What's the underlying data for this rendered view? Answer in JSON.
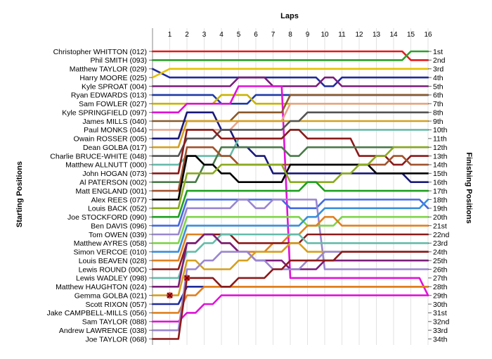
{
  "chart_data": {
    "type": "line",
    "title": "Laps",
    "xlabel": "Laps",
    "ylabel_left": "Starting Positions",
    "ylabel_right": "Finishing Positions",
    "x": [
      1,
      2,
      3,
      4,
      5,
      6,
      7,
      8,
      9,
      10,
      11,
      12,
      13,
      14,
      15,
      16
    ],
    "x_tick_labels": [
      "1",
      "2",
      "3",
      "4",
      "5",
      "6",
      "7",
      "8",
      "9",
      "10",
      "11",
      "12",
      "13",
      "14",
      "15",
      "16"
    ],
    "y_range": [
      1,
      34
    ],
    "grid": "vertical",
    "drivers": [
      "Christopher WHITTON (012)",
      "Phil SMITH (093)",
      "Matthew TAYLOR (029)",
      "Harry MOORE (025)",
      "Kyle SPROAT (004)",
      "Ryan EDWARDS (013)",
      "Sam FOWLER (027)",
      "Kyle SPRINGFIELD (097)",
      "James MILLS (040)",
      "Paul MONKS (044)",
      "Owain ROSSER (005)",
      "Dean GOLBA (017)",
      "Charlie BRUCE-WHITE (048)",
      "Matthew ALLNUTT (000)",
      "John HOGAN (073)",
      "Al PATERSON (002)",
      "Matt ENGLAND (001)",
      "Alex REES (077)",
      "Louis BACK (052)",
      "Joe STOCKFORD (090)",
      "Ben DAVIS (096)",
      "Tom OWEN (039)",
      "Matthew AYRES (058)",
      "Simon VERCOE (010)",
      "Louis BEAVEN (028)",
      "Lewis ROUND (00C)",
      "Lewis WADLEY (098)",
      "Matthew HAUGHTON (024)",
      "Gemma GOLBA (021)",
      "Scott RIXON (057)",
      "Jake CAMPBELL-MILLS (056)",
      "Sam TAYLOR (088)",
      "Andrew LAWRENCE (038)",
      "Joe TAYLOR (068)"
    ],
    "finishing_positions": [
      "1st",
      "2nd",
      "3rd",
      "4th",
      "5th",
      "6th",
      "7th",
      "8th",
      "9th",
      "10th",
      "11th",
      "12th",
      "13th",
      "14th",
      "15th",
      "16th",
      "17th",
      "18th",
      "19th",
      "20th",
      "21st",
      "22nd",
      "23rd",
      "24th",
      "25th",
      "26th",
      "27th",
      "28th",
      "29th",
      "30th",
      "31st",
      "32nd",
      "33rd",
      "34th"
    ],
    "series": [
      {
        "color": "#e31a1c",
        "start": 1,
        "positions": [
          1,
          1,
          1,
          1,
          1,
          1,
          1,
          1,
          1,
          1,
          1,
          1,
          1,
          1,
          2,
          2
        ]
      },
      {
        "color": "#2ca02c",
        "start": 2,
        "positions": [
          2,
          2,
          2,
          2,
          2,
          2,
          2,
          2,
          2,
          2,
          2,
          2,
          2,
          2,
          1,
          1
        ]
      },
      {
        "color": "#1f2b9b",
        "start": 3,
        "positions": [
          4,
          4,
          4,
          4,
          4,
          4,
          4,
          4,
          4,
          5,
          4,
          4,
          4,
          4,
          4,
          4
        ]
      },
      {
        "color": "#e5c100",
        "start": 4,
        "positions": [
          3,
          3,
          3,
          3,
          3,
          3,
          3,
          3,
          3,
          3,
          3,
          3,
          3,
          3,
          3,
          3
        ]
      },
      {
        "color": "#7a1e7a",
        "start": 5,
        "positions": [
          5,
          5,
          5,
          5,
          4,
          4,
          5,
          5,
          5,
          4,
          5,
          5,
          5,
          5,
          5,
          5
        ]
      },
      {
        "color": "#1e3aa8",
        "start": 6,
        "positions": [
          6,
          6,
          6,
          7,
          7,
          6,
          6,
          6,
          6,
          6,
          6,
          6,
          6,
          6,
          6,
          6
        ]
      },
      {
        "color": "#c8b400",
        "start": 7,
        "positions": [
          7,
          7,
          7,
          6,
          6,
          7,
          7,
          7,
          7,
          7,
          7,
          7,
          7,
          7,
          7,
          7
        ]
      },
      {
        "color": "#e012d8",
        "start": 8,
        "positions": [
          8,
          7,
          7,
          7,
          5,
          5,
          5,
          27,
          27,
          27,
          27,
          27,
          27,
          27,
          27,
          29
        ]
      },
      {
        "color": "#8b5a2b",
        "start": 9,
        "positions": [
          9,
          9,
          9,
          9,
          8,
          8,
          8,
          6,
          6,
          6,
          6,
          6,
          6,
          6,
          6,
          6
        ]
      },
      {
        "color": "#e8a48c",
        "start": 10,
        "positions": [
          10,
          10,
          10,
          10,
          9,
          9,
          9,
          7,
          7,
          7,
          7,
          7,
          7,
          7,
          7,
          7
        ]
      },
      {
        "color": "#1a1a7a",
        "start": 11,
        "positions": [
          11,
          8,
          8,
          10,
          12,
          13,
          15,
          15,
          15,
          15,
          15,
          15,
          15,
          15,
          16,
          16
        ]
      },
      {
        "color": "#d4a020",
        "start": 12,
        "positions": [
          12,
          9,
          9,
          9,
          9,
          9,
          9,
          9,
          9,
          9,
          9,
          9,
          9,
          9,
          9,
          9
        ]
      },
      {
        "color": "#555555",
        "start": 13,
        "positions": [
          13,
          11,
          11,
          10,
          10,
          10,
          10,
          9,
          8,
          8,
          8,
          8,
          8,
          8,
          8,
          8
        ]
      },
      {
        "color": "#66bbaa",
        "start": 14,
        "positions": [
          14,
          13,
          13,
          13,
          11,
          11,
          11,
          10,
          10,
          10,
          10,
          10,
          10,
          10,
          10,
          10
        ]
      },
      {
        "color": "#8b1a1a",
        "start": 15,
        "positions": [
          15,
          10,
          10,
          11,
          11,
          11,
          11,
          10,
          11,
          11,
          11,
          13,
          13,
          14,
          13,
          13
        ]
      },
      {
        "color": "#4a7a4a",
        "start": 16,
        "positions": [
          16,
          16,
          14,
          12,
          12,
          12,
          12,
          13,
          12,
          12,
          12,
          12,
          12,
          12,
          12,
          12
        ]
      },
      {
        "color": "#a0522d",
        "start": 17,
        "positions": [
          17,
          12,
          12,
          13,
          14,
          14,
          14,
          14,
          14,
          14,
          14,
          14,
          14,
          13,
          14,
          14
        ]
      },
      {
        "color": "#000000",
        "start": 18,
        "positions": [
          18,
          13,
          14,
          15,
          16,
          16,
          16,
          14,
          14,
          14,
          14,
          14,
          15,
          15,
          15,
          15
        ]
      },
      {
        "color": "#8aaa20",
        "start": 19,
        "positions": [
          19,
          15,
          15,
          14,
          14,
          14,
          14,
          16,
          16,
          16,
          15,
          14,
          13,
          12,
          12,
          12
        ]
      },
      {
        "color": "#1ea01e",
        "start": 20,
        "positions": [
          20,
          17,
          17,
          17,
          17,
          17,
          17,
          17,
          16,
          17,
          17,
          17,
          17,
          17,
          17,
          17
        ]
      },
      {
        "color": "#4169e1",
        "start": 21,
        "positions": [
          21,
          18,
          18,
          18,
          18,
          18,
          18,
          19,
          19,
          18,
          18,
          18,
          18,
          18,
          18,
          19
        ]
      },
      {
        "color": "#9a86cf",
        "start": 22,
        "positions": [
          22,
          19,
          19,
          19,
          18,
          19,
          18,
          18,
          18,
          26,
          26,
          26,
          26,
          26,
          26,
          26
        ]
      },
      {
        "color": "#7fd44a",
        "start": 23,
        "positions": [
          23,
          20,
          20,
          20,
          20,
          20,
          20,
          20,
          21,
          21,
          20,
          20,
          20,
          20,
          20,
          20
        ]
      },
      {
        "color": "#3a8fd8",
        "start": 24,
        "positions": [
          24,
          21,
          21,
          21,
          21,
          21,
          21,
          21,
          20,
          19,
          19,
          19,
          19,
          19,
          19,
          18
        ]
      },
      {
        "color": "#e08020",
        "start": 25,
        "positions": [
          25,
          22,
          22,
          23,
          24,
          24,
          23,
          22,
          21,
          20,
          21,
          21,
          21,
          21,
          21,
          21
        ]
      },
      {
        "color": "#8b1a1a",
        "start": 26,
        "positions": [
          26,
          23,
          22,
          22,
          23,
          23,
          23,
          23,
          22,
          22,
          22,
          22,
          22,
          22,
          22,
          22
        ]
      },
      {
        "color": "#66bbaa",
        "start": 27,
        "positions": [
          27,
          24,
          23,
          22,
          22,
          22,
          22,
          22,
          23,
          23,
          23,
          23,
          23,
          23,
          23,
          23
        ]
      },
      {
        "color": "#7a1e7a",
        "start": 28,
        "positions": [
          28,
          23,
          22,
          23,
          24,
          25,
          25,
          26,
          26,
          25,
          25,
          25,
          25,
          25,
          25,
          25
        ]
      },
      {
        "color": "#d4a020",
        "start": 29,
        "positions": [
          29,
          25,
          26,
          26,
          25,
          24,
          24,
          23,
          24,
          24,
          24,
          24,
          24,
          24,
          24,
          24
        ]
      },
      {
        "color": "#1f2b9b",
        "start": 30,
        "positions": [
          30,
          28,
          28,
          28,
          28,
          28,
          28,
          28,
          28,
          28,
          28,
          28,
          28,
          28,
          28,
          28
        ]
      },
      {
        "color": "#e08020",
        "start": 31,
        "positions": [
          31,
          29,
          28,
          28,
          28,
          28,
          28,
          28,
          28,
          28,
          28,
          28,
          28,
          28,
          28,
          28
        ]
      },
      {
        "color": "#e012d8",
        "start": 32,
        "positions": [
          32,
          31,
          30,
          29,
          29,
          29,
          29,
          29,
          29,
          29,
          29,
          29,
          29,
          29,
          29,
          29
        ]
      },
      {
        "color": "#9a86cf",
        "start": 33,
        "positions": [
          33,
          26,
          25,
          24,
          24,
          25,
          26,
          26,
          25,
          24,
          24,
          24,
          24,
          24,
          24,
          24
        ]
      },
      {
        "color": "#8b1a1a",
        "start": 34,
        "positions": [
          34,
          27,
          27,
          28,
          27,
          27,
          26,
          25,
          25,
          25,
          24,
          24,
          24,
          24,
          24,
          24
        ]
      }
    ],
    "markers": [
      {
        "lap": 2,
        "position": 27,
        "shape": "x",
        "color": "#cc2020"
      },
      {
        "lap": 1,
        "position": 29,
        "shape": "x",
        "color": "#cc2020"
      }
    ]
  }
}
